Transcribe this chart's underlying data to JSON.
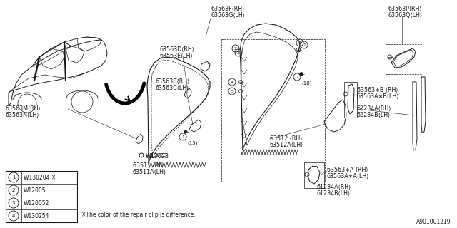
{
  "bg_color": "#ffffff",
  "line_color": "#1a1a1a",
  "diagram_id": "A901001219",
  "note": "※The color of the repair clip is difference.",
  "legend": [
    {
      "num": "1",
      "code": "W130204",
      "extra": " ※"
    },
    {
      "num": "2",
      "code": "W12005",
      "extra": ""
    },
    {
      "num": "3",
      "code": "W120052",
      "extra": ""
    },
    {
      "num": "4",
      "code": "W130254",
      "extra": ""
    }
  ]
}
